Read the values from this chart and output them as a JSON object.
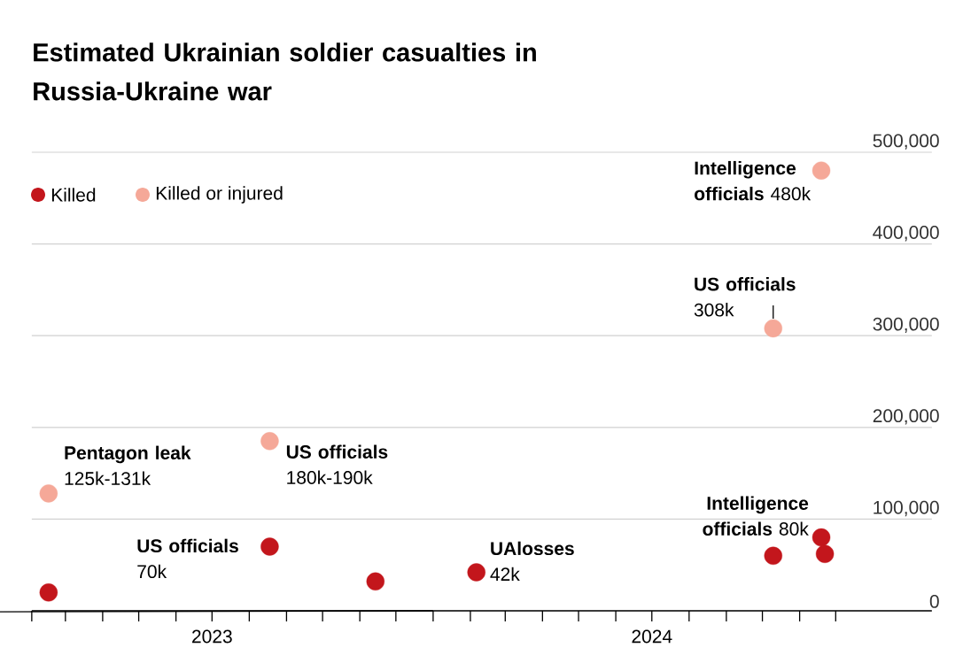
{
  "chart_data": {
    "type": "scatter",
    "title": "Estimated Ukrainian soldier casualties in Russia-Ukraine war",
    "legend": "top left",
    "grid": "y",
    "marker": "circle",
    "xlim": [
      "2023-02-01",
      "2025-02-19"
    ],
    "xticks": [
      {
        "value": "2023-02-01",
        "label": null
      },
      {
        "value": "2023-03-01",
        "label": null
      },
      {
        "value": "2023-04-01",
        "label": null
      },
      {
        "value": "2023-05-01",
        "label": null
      },
      {
        "value": "2023-06-01",
        "label": null
      },
      {
        "value": "2023-07-01",
        "label": "2023"
      },
      {
        "value": "2023-08-01",
        "label": null
      },
      {
        "value": "2023-09-01",
        "label": null
      },
      {
        "value": "2023-10-01",
        "label": null
      },
      {
        "value": "2023-11-01",
        "label": null
      },
      {
        "value": "2023-12-01",
        "label": null
      },
      {
        "value": "2024-01-01",
        "label": null
      },
      {
        "value": "2024-02-01",
        "label": null
      },
      {
        "value": "2024-03-01",
        "label": null
      },
      {
        "value": "2024-04-01",
        "label": null
      },
      {
        "value": "2024-05-01",
        "label": null
      },
      {
        "value": "2024-06-01",
        "label": null
      },
      {
        "value": "2024-07-01",
        "label": "2024"
      },
      {
        "value": "2024-08-01",
        "label": null
      },
      {
        "value": "2024-09-01",
        "label": null
      },
      {
        "value": "2024-10-01",
        "label": null
      },
      {
        "value": "2024-11-01",
        "label": null
      },
      {
        "value": "2024-12-01",
        "label": null
      }
    ],
    "ylim": [
      0,
      500000
    ],
    "yticks": [
      0,
      {
        "value": 100000,
        "label": "100,000"
      },
      {
        "value": 200000,
        "label": "200,000"
      },
      {
        "value": 300000,
        "label": "300,000"
      },
      {
        "value": 400000,
        "label": "400,000"
      },
      {
        "value": 500000,
        "label": "500,000"
      }
    ],
    "series": [
      {
        "name": "Killed",
        "color": "#c3161c",
        "x": [
          "2023-02-15",
          "2023-08-18",
          "2023-11-14",
          "2024-02-06",
          "2024-10-10",
          "2024-11-19",
          "2024-11-22"
        ],
        "values": [
          20000,
          70000,
          32000,
          42000,
          60000,
          80000,
          62000
        ]
      },
      {
        "name": "Killed or injured",
        "color": "#f5a898",
        "x": [
          "2023-02-15",
          "2023-08-18",
          "2024-10-10",
          "2024-11-19"
        ],
        "values": [
          128000,
          185000,
          308000,
          480000
        ]
      }
    ],
    "annotations": [
      {
        "text": "**Pentagon leak** 125k-131k",
        "x": "2023-02-15",
        "y": 128000
      },
      {
        "text": "**US officials** 180k-190k",
        "x": "2023-08-18",
        "y": 185000
      },
      {
        "text": "**US officials** 70k",
        "x": "2023-08-18",
        "y": 70000
      },
      {
        "text": "**UAlosses** 42k",
        "x": "2024-02-06",
        "y": 42000
      },
      {
        "text": "**Intelligence officials** 80k",
        "x": "2024-11-19",
        "y": 80000
      },
      {
        "text": "**US officials** 308k",
        "x": "2024-10-10",
        "y": 308000
      },
      {
        "text": "**Intelligence officials** 480k",
        "x": "2024-11-19",
        "y": 480000
      }
    ]
  }
}
